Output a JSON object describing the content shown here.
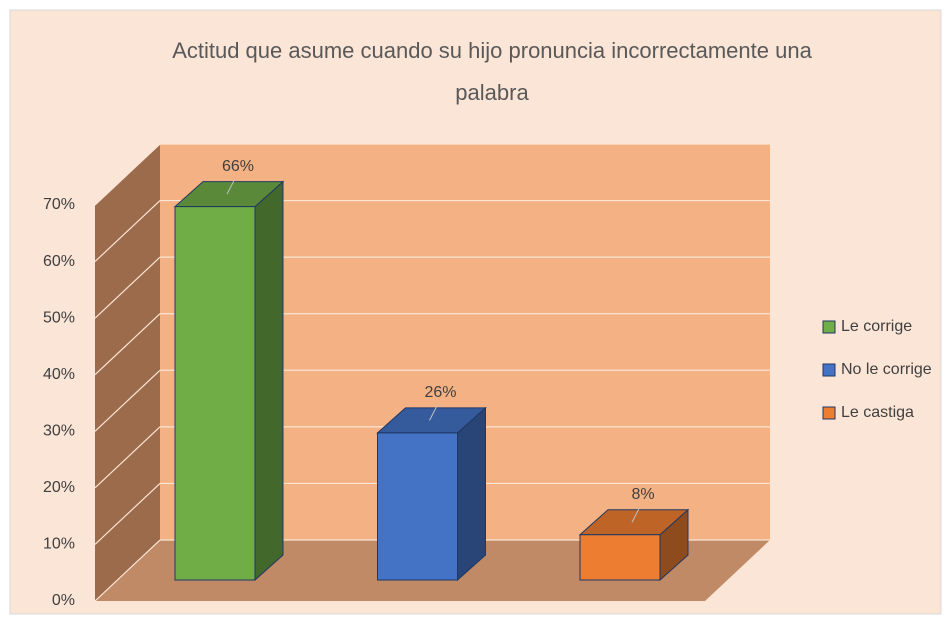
{
  "chart_data": {
    "type": "bar3d",
    "title": "Actitud que asume cuando su hijo pronuncia incorrectamente una palabra",
    "categories": [
      null
    ],
    "series": [
      {
        "name": "Le corrige",
        "color": "#70ad47",
        "values": [
          66
        ],
        "value_labels": [
          "66%"
        ]
      },
      {
        "name": "No le corrige",
        "color": "#4472c4",
        "values": [
          26
        ],
        "value_labels": [
          "26%"
        ]
      },
      {
        "name": "Le castiga",
        "color": "#ed7d31",
        "values": [
          8
        ],
        "value_labels": [
          "8%"
        ]
      }
    ],
    "ylim": [
      0,
      70
    ],
    "yticks": [
      {
        "value": 0,
        "label": "0%"
      },
      {
        "value": 10,
        "label": "10%"
      },
      {
        "value": 20,
        "label": "20%"
      },
      {
        "value": 30,
        "label": "30%"
      },
      {
        "value": 40,
        "label": "40%"
      },
      {
        "value": 50,
        "label": "50%"
      },
      {
        "value": 60,
        "label": "60%"
      },
      {
        "value": 70,
        "label": "70%"
      }
    ],
    "grid": true,
    "legend": "right"
  }
}
